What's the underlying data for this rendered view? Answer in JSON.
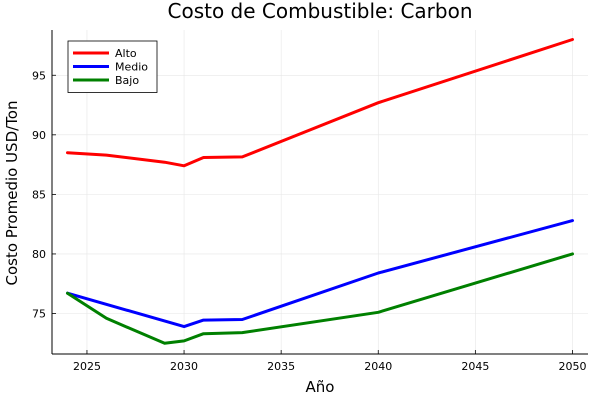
{
  "chart_data": {
    "type": "line",
    "title": "Costo de Combustible: Carbon",
    "xlabel": "Año",
    "ylabel": "Costo Promedio USD/Ton",
    "xlim": [
      2023.2,
      2050.8
    ],
    "ylim": [
      71.6,
      98.8
    ],
    "xticks": [
      2025,
      2030,
      2035,
      2040,
      2045,
      2050
    ],
    "yticks": [
      75,
      80,
      85,
      90,
      95
    ],
    "grid": true,
    "legend_position": "top-left",
    "series": [
      {
        "name": "Alto",
        "color": "#ff0000",
        "x": [
          2024,
          2026,
          2029,
          2030,
          2031,
          2033,
          2040,
          2050
        ],
        "y": [
          88.5,
          88.3,
          87.7,
          87.4,
          88.1,
          88.15,
          92.7,
          98.0
        ]
      },
      {
        "name": "Medio",
        "color": "#0000ff",
        "x": [
          2024,
          2030,
          2031,
          2033,
          2040,
          2050
        ],
        "y": [
          76.7,
          73.9,
          74.45,
          74.5,
          78.4,
          82.8
        ]
      },
      {
        "name": "Bajo",
        "color": "#008000",
        "x": [
          2024,
          2026,
          2029,
          2030,
          2031,
          2033,
          2040,
          2050
        ],
        "y": [
          76.7,
          74.6,
          72.5,
          72.7,
          73.3,
          73.4,
          75.1,
          80.0
        ]
      }
    ]
  }
}
